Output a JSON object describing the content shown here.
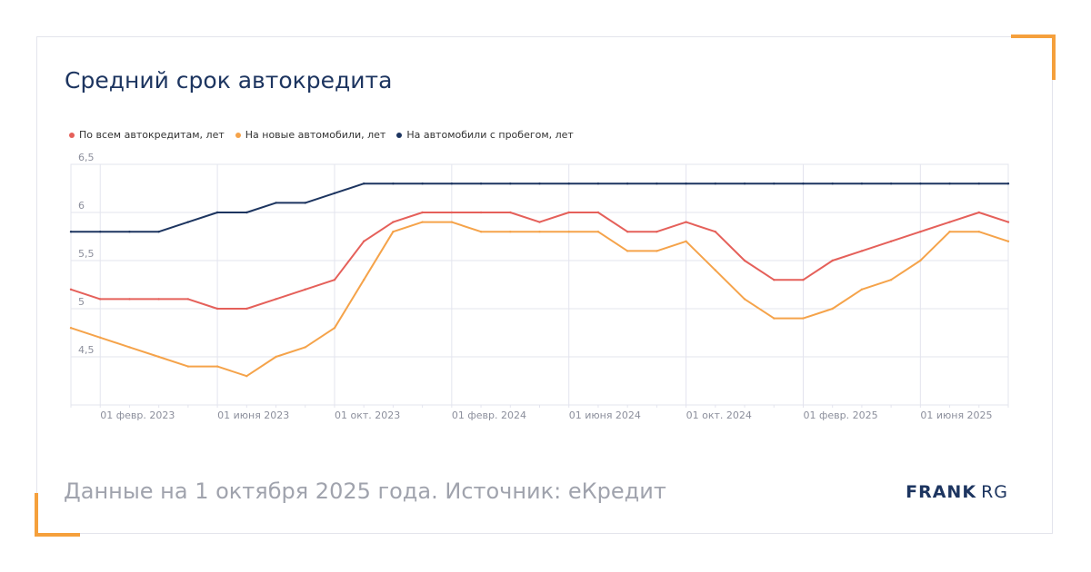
{
  "title": "Средний срок автокредита",
  "footer": "Данные на 1 октября 2025 года. Источник: еКредит",
  "logo": {
    "bold": "FRANK",
    "light": "RG"
  },
  "colors": {
    "accent": "#f5a03c",
    "title": "#1d3560",
    "grid": "#e3e4ee",
    "axis_text": "#8c8f9c"
  },
  "chart_data": {
    "type": "line",
    "title": "Средний срок автокредита",
    "x": [
      "2023-01-01",
      "2023-02-01",
      "2023-03-01",
      "2023-04-01",
      "2023-05-01",
      "2023-06-01",
      "2023-07-01",
      "2023-08-01",
      "2023-09-01",
      "2023-10-01",
      "2023-11-01",
      "2023-12-01",
      "2024-01-01",
      "2024-02-01",
      "2024-03-01",
      "2024-04-01",
      "2024-05-01",
      "2024-06-01",
      "2024-07-01",
      "2024-08-01",
      "2024-09-01",
      "2024-10-01",
      "2024-11-01",
      "2024-12-01",
      "2025-01-01",
      "2025-02-01",
      "2025-03-01",
      "2025-04-01",
      "2025-05-01",
      "2025-06-01",
      "2025-07-01",
      "2025-08-01",
      "2025-09-01"
    ],
    "series": [
      {
        "name": "По всем автокредитам, лет",
        "color": "#e5605a",
        "values": [
          5.2,
          5.1,
          5.1,
          5.1,
          5.1,
          5.0,
          5.0,
          5.1,
          5.2,
          5.3,
          5.7,
          5.9,
          6.0,
          6.0,
          6.0,
          6.0,
          5.9,
          6.0,
          6.0,
          5.8,
          5.8,
          5.9,
          5.8,
          5.5,
          5.3,
          5.3,
          5.5,
          5.6,
          5.7,
          5.8,
          5.9,
          6.0,
          5.9
        ]
      },
      {
        "name": "На новые автомобили, лет",
        "color": "#f5a34a",
        "values": [
          4.8,
          4.7,
          4.6,
          4.5,
          4.4,
          4.4,
          4.3,
          4.5,
          4.6,
          4.8,
          5.3,
          5.8,
          5.9,
          5.9,
          5.8,
          5.8,
          5.8,
          5.8,
          5.8,
          5.6,
          5.6,
          5.7,
          5.4,
          5.1,
          4.9,
          4.9,
          5.0,
          5.2,
          5.3,
          5.5,
          5.8,
          5.8,
          5.7
        ]
      },
      {
        "name": "На автомобили с пробегом, лет",
        "color": "#1d3560",
        "values": [
          5.8,
          5.8,
          5.8,
          5.8,
          5.9,
          6.0,
          6.0,
          6.1,
          6.1,
          6.2,
          6.3,
          6.3,
          6.3,
          6.3,
          6.3,
          6.3,
          6.3,
          6.3,
          6.3,
          6.3,
          6.3,
          6.3,
          6.3,
          6.3,
          6.3,
          6.3,
          6.3,
          6.3,
          6.3,
          6.3,
          6.3,
          6.3,
          6.3
        ]
      }
    ],
    "y_ticks": [
      "4,5",
      "5",
      "5,5",
      "6",
      "6,5"
    ],
    "y_tick_values": [
      4.5,
      5,
      5.5,
      6,
      6.5
    ],
    "ylim": [
      4.0,
      6.5
    ],
    "x_tick_labels": [
      "01 февр. 2023",
      "01 июня 2023",
      "01 окт. 2023",
      "01 февр. 2024",
      "01 июня 2024",
      "01 окт. 2024",
      "01 февр. 2025",
      "01 июня 2025"
    ],
    "x_tick_indices": [
      1,
      5,
      9,
      13,
      17,
      21,
      25,
      29
    ],
    "grid": true,
    "legend_position": "top-left"
  }
}
